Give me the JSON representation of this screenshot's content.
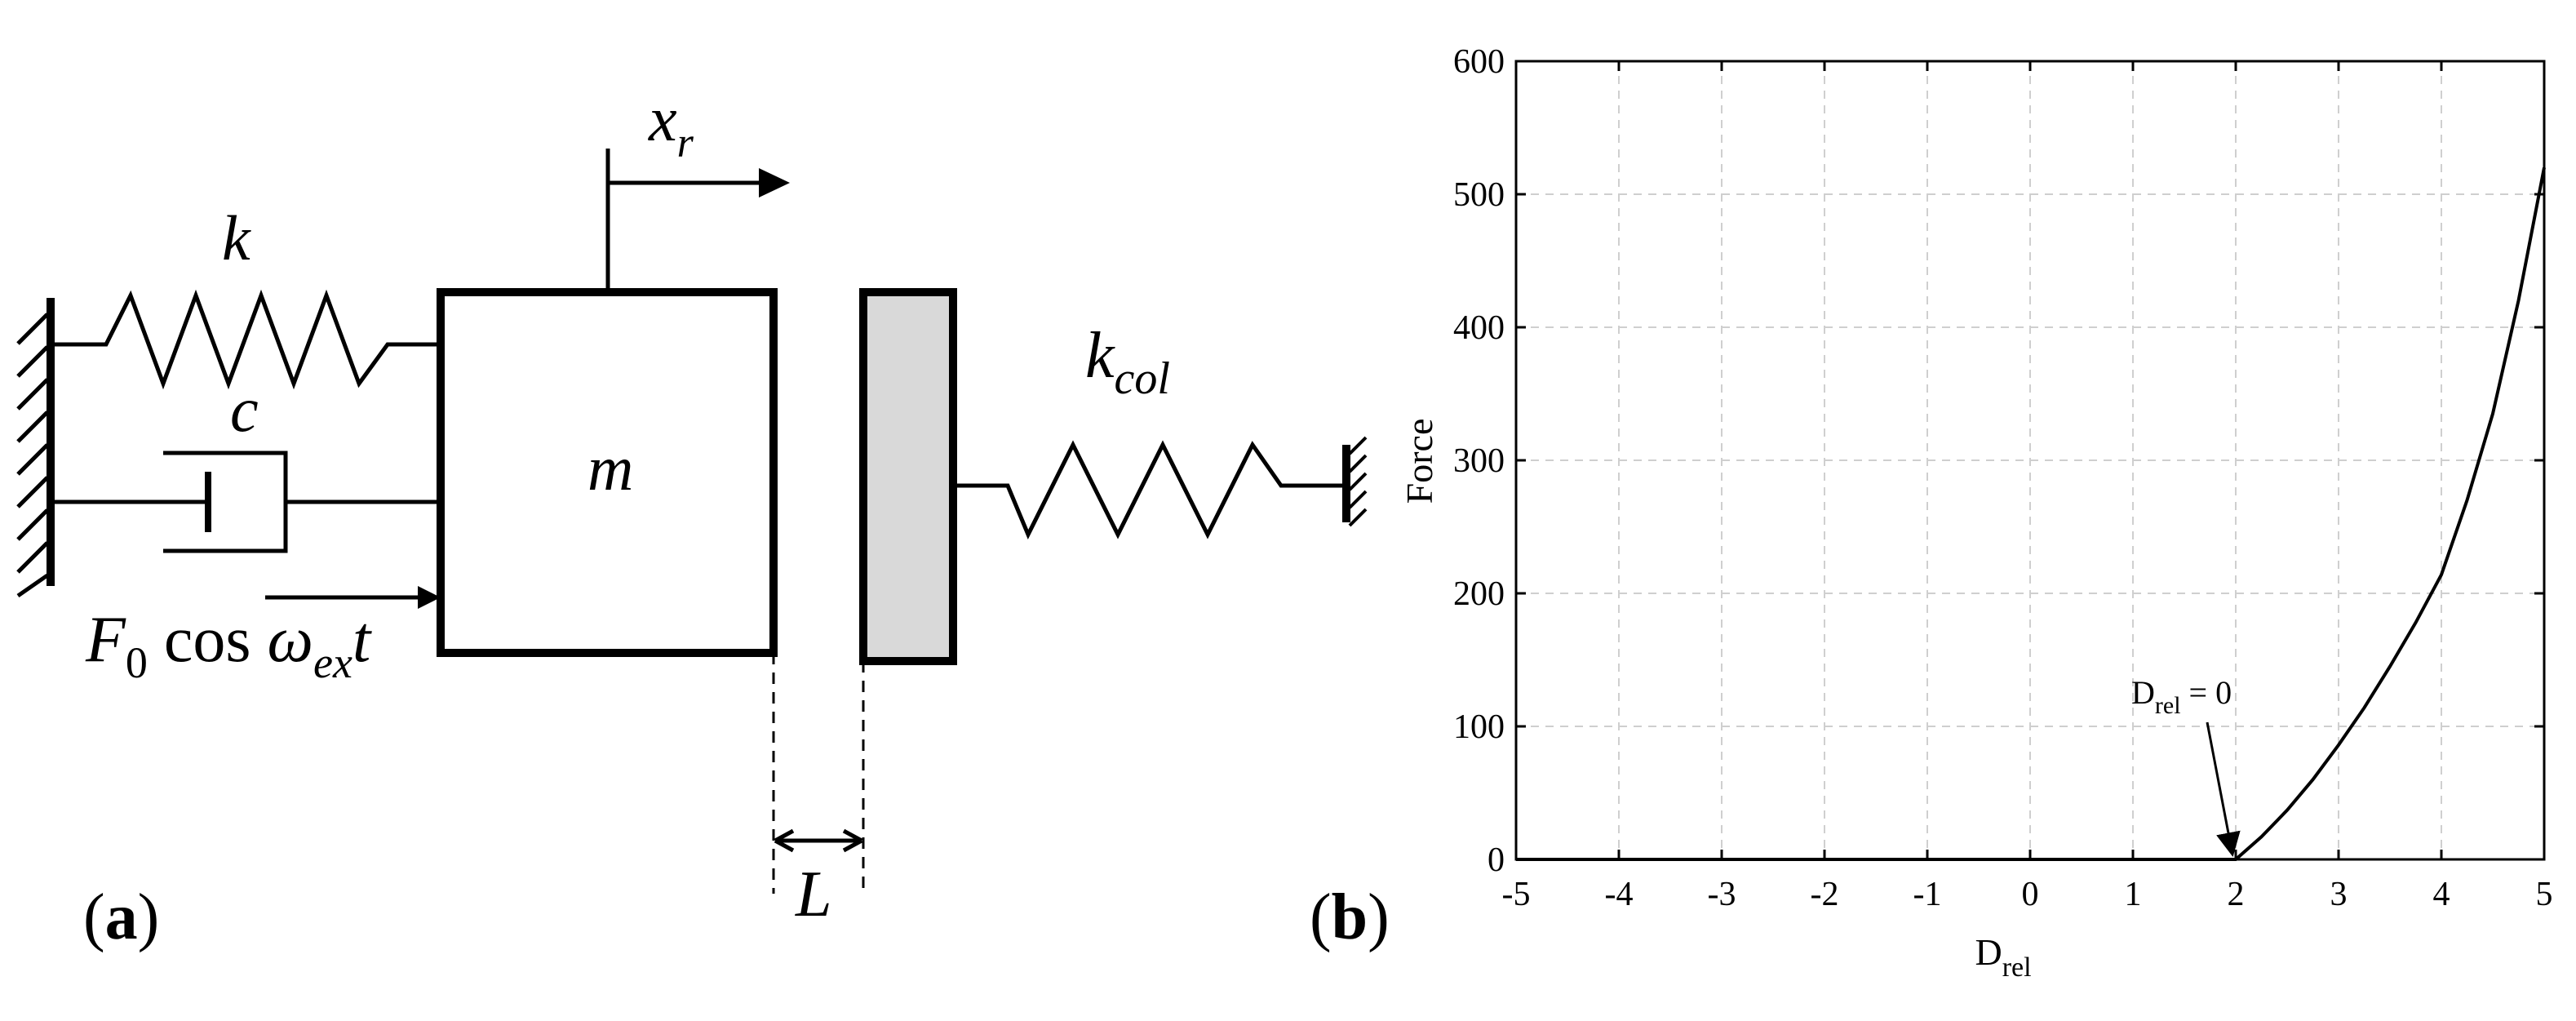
{
  "panel_a": {
    "label_open": "(",
    "label_letter": "a",
    "label_close": ")",
    "mass": "m",
    "stiffness": "k",
    "damping": "c",
    "collision_stiffness_base": "k",
    "collision_stiffness_sub": "col",
    "displacement_base": "x",
    "displacement_sub": "r",
    "force_prefix": "F",
    "force_sub0": "0",
    "force_cos": " cos ",
    "force_omega": "ω",
    "force_sub_ex": "ex",
    "force_t": "t",
    "gap": "L",
    "colors": {
      "wall_block_fill": "#d9d9d9",
      "stroke": "#000000"
    }
  },
  "panel_b": {
    "label_open": "(",
    "label_letter": "b",
    "label_close": ")",
    "annotation_base": "D",
    "annotation_sub": "rel",
    "annotation_rest": " = 0"
  },
  "chart_data": {
    "type": "line",
    "title": "",
    "xlabel_base": "D",
    "xlabel_sub": "rel",
    "ylabel": "Force",
    "xlim": [
      -5,
      5
    ],
    "ylim": [
      0,
      600
    ],
    "xticks": [
      -5,
      -4,
      -3,
      -2,
      -1,
      0,
      1,
      2,
      3,
      4,
      5
    ],
    "yticks": [
      0,
      100,
      200,
      300,
      400,
      500,
      600
    ],
    "grid": true,
    "legend": "none",
    "series": [
      {
        "x": [
          -5,
          -4,
          -3,
          -2,
          -1,
          0,
          1,
          2,
          2.25,
          2.5,
          2.75,
          3,
          3.25,
          3.5,
          3.75,
          4,
          4.25,
          4.5,
          4.75,
          5
        ],
        "y": [
          0,
          0,
          0,
          0,
          0,
          0,
          0,
          0,
          17,
          37,
          60,
          86,
          114,
          145,
          178,
          214,
          270,
          335,
          420,
          520
        ],
        "color": "#000000"
      }
    ],
    "annotation": {
      "x": 2,
      "y": 0
    }
  }
}
